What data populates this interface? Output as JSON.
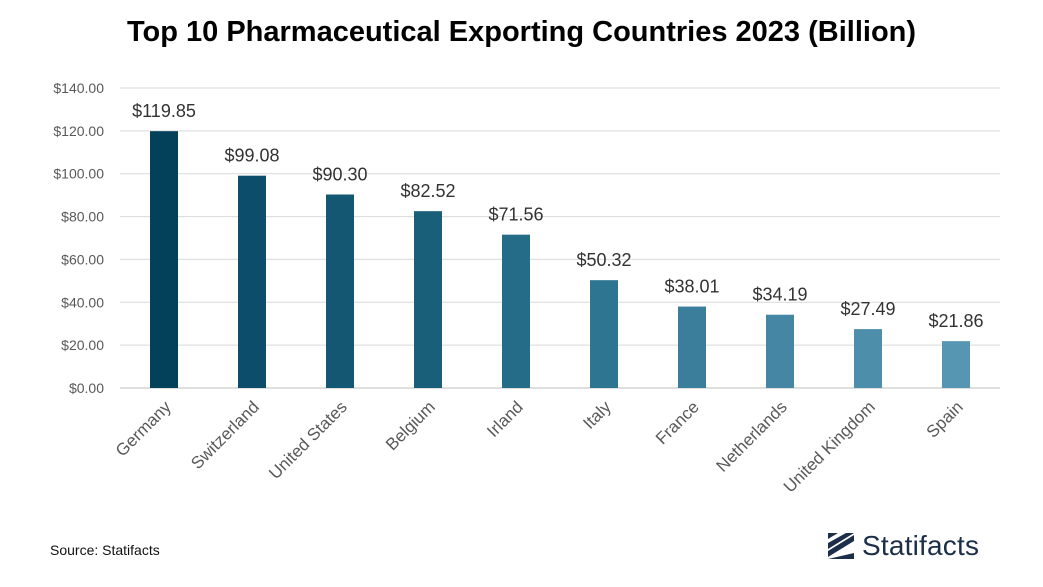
{
  "title": "Top 10 Pharmaceutical Exporting Countries 2023 (Billion)",
  "source": "Source: Statifacts",
  "brand": "Statifacts",
  "chart_data": {
    "type": "bar",
    "title": "Top 10 Pharmaceutical Exporting Countries 2023 (Billion)",
    "categories": [
      "Germany",
      "Switzerland",
      "United States",
      "Belgium",
      "Irland",
      "Italy",
      "France",
      "Netherlands",
      "United Kingdom",
      "Spain"
    ],
    "values": [
      119.85,
      99.08,
      90.3,
      82.52,
      71.56,
      50.32,
      38.01,
      34.19,
      27.49,
      21.86
    ],
    "data_labels": [
      "$119.85",
      "$99.08",
      "$90.30",
      "$82.52",
      "$71.56",
      "$50.32",
      "$38.01",
      "$34.19",
      "$27.49",
      "$21.86"
    ],
    "yticks": [
      0,
      20,
      40,
      60,
      80,
      100,
      120,
      140
    ],
    "ytick_labels": [
      "$0.00",
      "$20.00",
      "$40.00",
      "$60.00",
      "$80.00",
      "$100.00",
      "$120.00",
      "$140.00"
    ],
    "ylim": [
      0,
      140
    ],
    "xlabel": "",
    "ylabel": "",
    "grid": true,
    "colors": [
      "#03415a",
      "#0b4d6b",
      "#135772",
      "#1a5f79",
      "#246c87",
      "#2e7592",
      "#3a7e9b",
      "#4486a3",
      "#4d8fab",
      "#5796b2"
    ]
  }
}
